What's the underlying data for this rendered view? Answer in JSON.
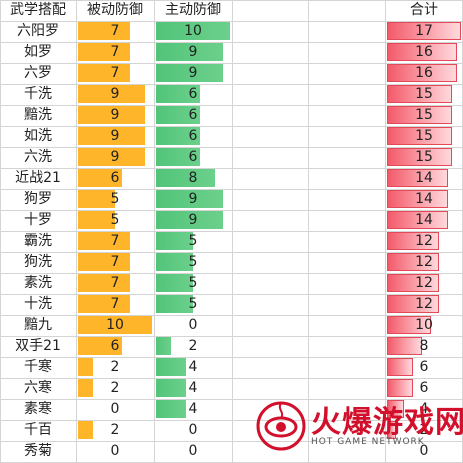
{
  "headers": {
    "name": "武学搭配",
    "passive": "被动防御",
    "active": "主动防御",
    "total": "合计"
  },
  "rows": [
    {
      "name": "六阳罗",
      "passive": 7,
      "active": 10,
      "total": 17
    },
    {
      "name": "如罗",
      "passive": 7,
      "active": 9,
      "total": 16
    },
    {
      "name": "六罗",
      "passive": 7,
      "active": 9,
      "total": 16
    },
    {
      "name": "千洗",
      "passive": 9,
      "active": 6,
      "total": 15
    },
    {
      "name": "黯洗",
      "passive": 9,
      "active": 6,
      "total": 15
    },
    {
      "name": "如洗",
      "passive": 9,
      "active": 6,
      "total": 15
    },
    {
      "name": "六洗",
      "passive": 9,
      "active": 6,
      "total": 15
    },
    {
      "name": "近战21",
      "passive": 6,
      "active": 8,
      "total": 14
    },
    {
      "name": "狗罗",
      "passive": 5,
      "active": 9,
      "total": 14
    },
    {
      "name": "十罗",
      "passive": 5,
      "active": 9,
      "total": 14
    },
    {
      "name": "霸洗",
      "passive": 7,
      "active": 5,
      "total": 12
    },
    {
      "name": "狗洗",
      "passive": 7,
      "active": 5,
      "total": 12
    },
    {
      "name": "素洗",
      "passive": 7,
      "active": 5,
      "total": 12
    },
    {
      "name": "十洗",
      "passive": 7,
      "active": 5,
      "total": 12
    },
    {
      "name": "黯九",
      "passive": 10,
      "active": 0,
      "total": 10
    },
    {
      "name": "双手21",
      "passive": 6,
      "active": 2,
      "total": 8
    },
    {
      "name": "千寒",
      "passive": 2,
      "active": 4,
      "total": 6
    },
    {
      "name": "六寒",
      "passive": 2,
      "active": 4,
      "total": 6
    },
    {
      "name": "素寒",
      "passive": 0,
      "active": 4,
      "total": 4
    },
    {
      "name": "千百",
      "passive": 2,
      "active": 0,
      "total": 2
    },
    {
      "name": "秀菊",
      "passive": 0,
      "active": 0,
      "total": 0
    }
  ],
  "scale_max": {
    "passive": 10,
    "active": 10,
    "total": 17
  },
  "colors": {
    "passive_bar": "#ffb52a",
    "active_bar": "#52c47a",
    "total_bar": "#f35a6a",
    "grid": "#d4d4d4"
  },
  "watermark": {
    "title": "火爆游戏网",
    "subtitle": "HOT GAME NETWORK"
  }
}
